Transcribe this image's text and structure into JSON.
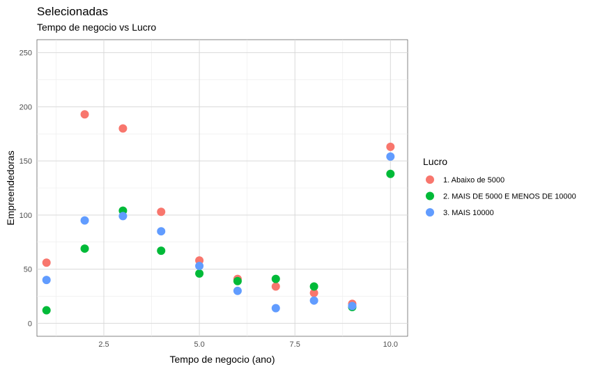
{
  "chart_data": {
    "type": "scatter",
    "title": "Selecionadas",
    "subtitle": "Tempo de negocio vs Lucro",
    "xlabel": "Tempo de negocio (ano)",
    "ylabel": "Empreendedoras",
    "xlim": [
      0.75,
      10.45
    ],
    "ylim": [
      -12,
      262
    ],
    "x_ticks": [
      2.5,
      5.0,
      7.5,
      10.0
    ],
    "x_tick_labels": [
      "2.5",
      "5.0",
      "7.5",
      "10.0"
    ],
    "y_ticks": [
      0,
      50,
      100,
      150,
      200,
      250
    ],
    "y_tick_labels": [
      "0",
      "50",
      "100",
      "150",
      "200",
      "250"
    ],
    "grid": true,
    "legend": {
      "title": "Lucro",
      "position": "right"
    },
    "series": [
      {
        "name": "1. Abaixo de 5000",
        "color": "#F8766D",
        "x": [
          1,
          2,
          3,
          4,
          5,
          6,
          7,
          8,
          9,
          10
        ],
        "y": [
          56,
          193,
          180,
          103,
          58,
          41,
          34,
          28,
          18,
          163
        ]
      },
      {
        "name": "2. MAIS DE 5000 E MENOS DE 10000",
        "color": "#00BA38",
        "x": [
          1,
          2,
          3,
          4,
          5,
          6,
          7,
          8,
          9,
          10
        ],
        "y": [
          12,
          69,
          104,
          67,
          46,
          39,
          41,
          34,
          15,
          138
        ]
      },
      {
        "name": "3. MAIS 10000",
        "color": "#619CFF",
        "x": [
          1,
          2,
          3,
          4,
          5,
          6,
          7,
          8,
          9,
          10
        ],
        "y": [
          40,
          95,
          99,
          85,
          53,
          30,
          14,
          21,
          16,
          154
        ]
      }
    ]
  }
}
